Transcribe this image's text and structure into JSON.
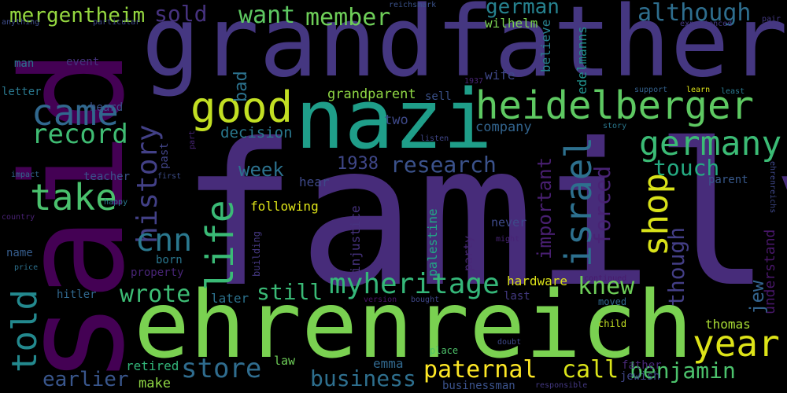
{
  "words": [
    {
      "text": "family",
      "color": "#472c7a"
    },
    {
      "text": "said",
      "color": "#440154"
    },
    {
      "text": "grandfather",
      "color": "#453781"
    },
    {
      "text": "ehrenreich",
      "color": "#7ad151"
    },
    {
      "text": "nazi",
      "color": "#1f9e89"
    },
    {
      "text": "heidelberger",
      "color": "#5ec962"
    },
    {
      "text": "good",
      "color": "#c2df23"
    },
    {
      "text": "came",
      "color": "#31688e"
    },
    {
      "text": "germany",
      "color": "#3bbb75"
    },
    {
      "text": "take",
      "color": "#4ac16d"
    },
    {
      "text": "year",
      "color": "#dde318"
    },
    {
      "text": "record",
      "color": "#3fbc73"
    },
    {
      "text": "israel",
      "color": "#2d708e"
    },
    {
      "text": "shop",
      "color": "#d8e219"
    },
    {
      "text": "life",
      "color": "#3aba76"
    },
    {
      "text": "history",
      "color": "#424086"
    },
    {
      "text": "cnn",
      "color": "#2a788e"
    },
    {
      "text": "told",
      "color": "#23898e"
    },
    {
      "text": "myheritage",
      "color": "#35b779"
    },
    {
      "text": "knew",
      "color": "#6ece58"
    },
    {
      "text": "store",
      "color": "#2f6c8e"
    },
    {
      "text": "wrote",
      "color": "#3dbc74"
    },
    {
      "text": "paternal",
      "color": "#fde725"
    },
    {
      "text": "call",
      "color": "#dae319"
    },
    {
      "text": "benjamin",
      "color": "#4cc26c"
    },
    {
      "text": "business",
      "color": "#2e6f8e"
    },
    {
      "text": "earlier",
      "color": "#39568c"
    },
    {
      "text": "still",
      "color": "#3aba76"
    },
    {
      "text": "research",
      "color": "#3b528b"
    },
    {
      "text": "touch",
      "color": "#25ab82"
    },
    {
      "text": "week",
      "color": "#2c728e"
    },
    {
      "text": "though",
      "color": "#433e85"
    },
    {
      "text": "forced",
      "color": "#482374"
    },
    {
      "text": "important",
      "color": "#481f70"
    },
    {
      "text": "want",
      "color": "#5ec962"
    },
    {
      "text": "member",
      "color": "#6ece58"
    },
    {
      "text": "sold",
      "color": "#46327e"
    },
    {
      "text": "although",
      "color": "#2e6e8e"
    },
    {
      "text": "german",
      "color": "#26818e"
    },
    {
      "text": "mergentheim",
      "color": "#95d840"
    },
    {
      "text": "jew",
      "color": "#33638d"
    },
    {
      "text": "understand",
      "color": "#481769"
    },
    {
      "text": "1938",
      "color": "#3f4788"
    },
    {
      "text": "grandparent",
      "color": "#8fd744"
    },
    {
      "text": "decision",
      "color": "#2a788e"
    },
    {
      "text": "company",
      "color": "#32648e"
    },
    {
      "text": "two",
      "color": "#3e4989"
    },
    {
      "text": "sell",
      "color": "#3b528b"
    },
    {
      "text": "bad",
      "color": "#2c728e"
    },
    {
      "text": "wilhelm",
      "color": "#7ad151"
    },
    {
      "text": "wife",
      "color": "#3f4889"
    },
    {
      "text": "believe",
      "color": "#27808e"
    },
    {
      "text": "edelmanns",
      "color": "#21918c"
    },
    {
      "text": "hardware",
      "color": "#dde318"
    },
    {
      "text": "thomas",
      "color": "#a8db34"
    },
    {
      "text": "emma",
      "color": "#31688e"
    },
    {
      "text": "law",
      "color": "#6ece58"
    },
    {
      "text": "make",
      "color": "#8fd744"
    },
    {
      "text": "retired",
      "color": "#32b67a"
    },
    {
      "text": "later",
      "color": "#2c728e"
    },
    {
      "text": "hear",
      "color": "#3e4989"
    },
    {
      "text": "following",
      "color": "#dde318"
    },
    {
      "text": "injustice",
      "color": "#46327e"
    },
    {
      "text": "palestine",
      "color": "#22a785"
    },
    {
      "text": "party",
      "color": "#482878"
    },
    {
      "text": "never",
      "color": "#3e4a89"
    },
    {
      "text": "last",
      "color": "#443a83"
    },
    {
      "text": "businessman",
      "color": "#3b528b"
    },
    {
      "text": "jewish",
      "color": "#404688"
    },
    {
      "text": "father",
      "color": "#482878"
    },
    {
      "text": "responsible",
      "color": "#443983"
    },
    {
      "text": "child",
      "color": "#c2df23"
    },
    {
      "text": "place",
      "color": "#4ec36b"
    },
    {
      "text": "doubt",
      "color": "#3e4989"
    },
    {
      "text": "moved",
      "color": "#31688e"
    },
    {
      "text": "bought",
      "color": "#3f4788"
    },
    {
      "text": "version",
      "color": "#481467"
    },
    {
      "text": "continued",
      "color": "#481b6d"
    },
    {
      "text": "might",
      "color": "#482475"
    },
    {
      "text": "hitler",
      "color": "#31688e"
    },
    {
      "text": "born",
      "color": "#2a768e"
    },
    {
      "text": "property",
      "color": "#482576"
    },
    {
      "text": "name",
      "color": "#365d8d"
    },
    {
      "text": "price",
      "color": "#2d718e"
    },
    {
      "text": "building",
      "color": "#453882"
    },
    {
      "text": "teacher",
      "color": "#3b528b"
    },
    {
      "text": "impact",
      "color": "#31688e"
    },
    {
      "text": "happy",
      "color": "#2a788e"
    },
    {
      "text": "country",
      "color": "#482173"
    },
    {
      "text": "first",
      "color": "#3d4e8a"
    },
    {
      "text": "past",
      "color": "#414487"
    },
    {
      "text": "parent",
      "color": "#38598c"
    },
    {
      "text": "part",
      "color": "#482576"
    },
    {
      "text": "1937",
      "color": "#482475"
    },
    {
      "text": "listen",
      "color": "#404688"
    },
    {
      "text": "letter",
      "color": "#2a788e"
    },
    {
      "text": "event",
      "color": "#46337f"
    },
    {
      "text": "man",
      "color": "#2c738e"
    },
    {
      "text": "heard",
      "color": "#3b528b"
    },
    {
      "text": "anything",
      "color": "#3e4c8a"
    },
    {
      "text": "particular",
      "color": "#3f4889"
    },
    {
      "text": "reichsmark",
      "color": "#3b528b"
    },
    {
      "text": "experienced",
      "color": "#443983"
    },
    {
      "text": "pair",
      "color": "#443983"
    },
    {
      "text": "support",
      "color": "#34618d"
    },
    {
      "text": "learn",
      "color": "#dde318"
    },
    {
      "text": "least",
      "color": "#2a788e"
    },
    {
      "text": "story",
      "color": "#2a788e"
    },
    {
      "text": "ehrenreichs",
      "color": "#3f4889"
    }
  ]
}
